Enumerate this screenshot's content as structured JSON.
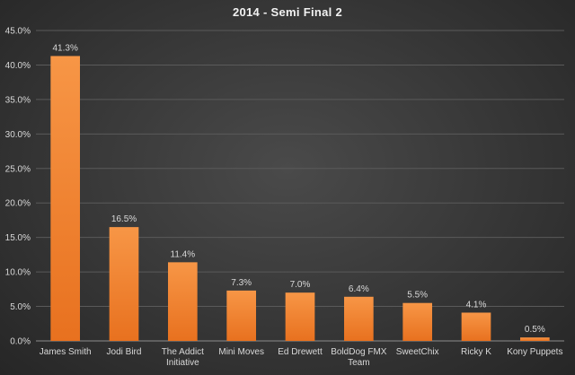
{
  "chart_data": {
    "type": "bar",
    "title": "2014 - Semi Final 2",
    "xlabel": "",
    "ylabel": "",
    "ylim": [
      0,
      45
    ],
    "yticks": [
      "0.0%",
      "5.0%",
      "10.0%",
      "15.0%",
      "20.0%",
      "25.0%",
      "30.0%",
      "35.0%",
      "40.0%",
      "45.0%"
    ],
    "categories": [
      "James Smith",
      "Jodi Bird",
      "The Addict Initiative",
      "Mini Moves",
      "Ed Drewett",
      "BoldDog FMX Team",
      "SweetChix",
      "Ricky K",
      "Kony Puppets"
    ],
    "values": [
      41.3,
      16.5,
      11.4,
      7.3,
      7.0,
      6.4,
      5.5,
      4.1,
      0.5
    ],
    "data_labels": [
      "41.3%",
      "16.5%",
      "11.4%",
      "7.3%",
      "7.0%",
      "6.4%",
      "5.5%",
      "4.1%",
      "0.5%"
    ],
    "bar_color": "#f07f2c",
    "grid": true,
    "legend": "none"
  }
}
